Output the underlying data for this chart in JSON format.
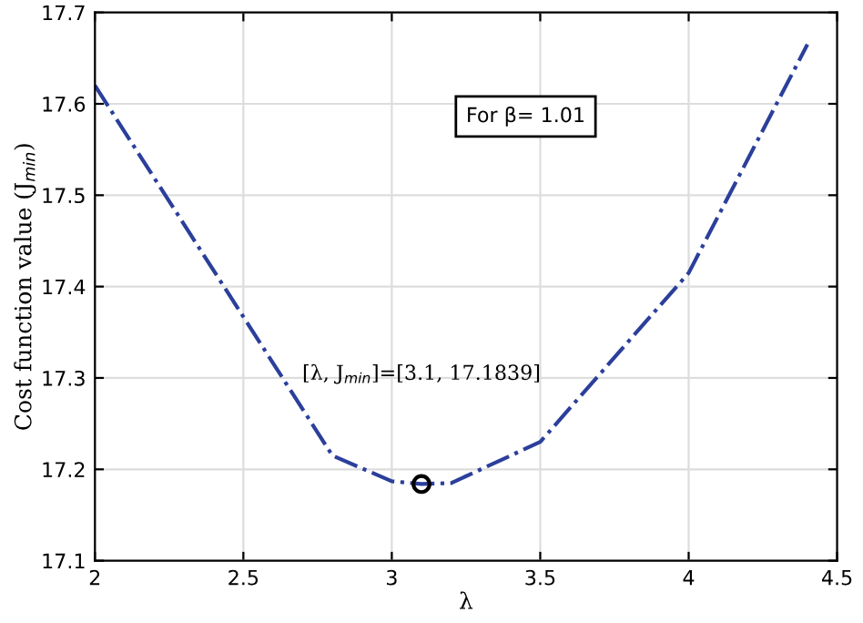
{
  "chart_data": {
    "type": "line",
    "xlabel": "λ",
    "ylabel": "Cost function value (J$_{min}$)",
    "series": [
      {
        "color": "#2b3f9b",
        "line_style": "dashed",
        "marker": "none",
        "x": [
          2,
          2.8,
          3.0,
          3.1,
          3.2,
          3.5,
          4.0,
          4.4
        ],
        "values": [
          17.62,
          17.215,
          17.187,
          17.1839,
          17.185,
          17.23,
          17.415,
          17.665
        ]
      },
      {
        "type": "scatter",
        "color": "#000000",
        "marker": "circle",
        "x": [
          3.1
        ],
        "values": [
          17.1839
        ]
      }
    ],
    "annotations": [
      "For β= 1.01",
      "[λ, J$_{min}$]=[3.1, 17.1839]"
    ],
    "xlim": [
      2,
      4.5
    ],
    "xticks": [
      2,
      2.5,
      3,
      3.5,
      4,
      4.5
    ],
    "ylim": [
      17.1,
      17.7
    ],
    "yticks": [
      17.1,
      17.2,
      17.3,
      17.4,
      17.5,
      17.6,
      17.7
    ],
    "grid": true
  }
}
